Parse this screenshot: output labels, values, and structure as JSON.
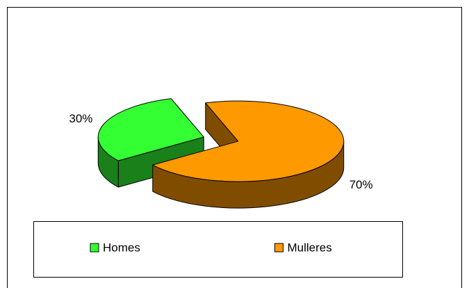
{
  "chart_data": {
    "type": "pie",
    "categories": [
      "Homes",
      "Mulleres"
    ],
    "values": [
      30,
      70
    ],
    "value_labels": [
      "30%",
      "70%"
    ],
    "colors": [
      "#33ff33",
      "#ff9900"
    ],
    "legend": "bottom"
  }
}
